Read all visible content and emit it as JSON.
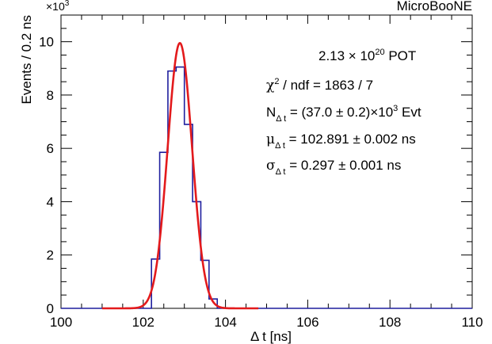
{
  "chart_data": {
    "type": "histogram",
    "experiment_label": "MicroBooNE",
    "xlabel": "Δ t [ns]",
    "ylabel": "Events / 0.2 ns",
    "y_multiplier_label": "×10",
    "y_multiplier_exp": "3",
    "xlim": [
      100,
      110
    ],
    "ylim": [
      0,
      11
    ],
    "x_ticks": [
      "100",
      "102",
      "104",
      "106",
      "108",
      "110"
    ],
    "y_ticks": [
      "0",
      "2",
      "4",
      "6",
      "8",
      "10"
    ],
    "bin_width": 0.2,
    "histogram": {
      "color": "#1f1f9e",
      "bins": [
        {
          "x0": 102.2,
          "x1": 102.4,
          "value": 1.85
        },
        {
          "x0": 102.4,
          "x1": 102.6,
          "value": 5.85
        },
        {
          "x0": 102.6,
          "x1": 102.8,
          "value": 8.9
        },
        {
          "x0": 102.8,
          "x1": 103.0,
          "value": 9.05
        },
        {
          "x0": 103.0,
          "x1": 103.2,
          "value": 6.9
        },
        {
          "x0": 103.2,
          "x1": 103.4,
          "value": 4.0
        },
        {
          "x0": 103.4,
          "x1": 103.6,
          "value": 1.8
        },
        {
          "x0": 103.6,
          "x1": 103.8,
          "value": 0.35
        }
      ]
    },
    "fit": {
      "color": "#e31a1c",
      "peak": 9.95,
      "mean": 102.891,
      "sigma": 0.297
    },
    "annotations": {
      "pot": "2.13 × 10",
      "pot_exp": "20",
      "pot_unit": " POT",
      "chi2_sym": "χ",
      "chi2_sup": "2",
      "chi2_rest": " / ndf = 1863 / 7",
      "n_sym": "N",
      "n_sub": "Δ t",
      "n_value": " = (37.0 ± 0.2)×10",
      "n_exp": "3",
      "n_unit": " Evt",
      "mu_sym": "μ",
      "mu_sub": "Δ t",
      "mu_value": " = 102.891 ± 0.002 ns",
      "sigma_sym": "σ",
      "sigma_sub": "Δ t",
      "sigma_value": " = 0.297 ± 0.001 ns"
    }
  }
}
